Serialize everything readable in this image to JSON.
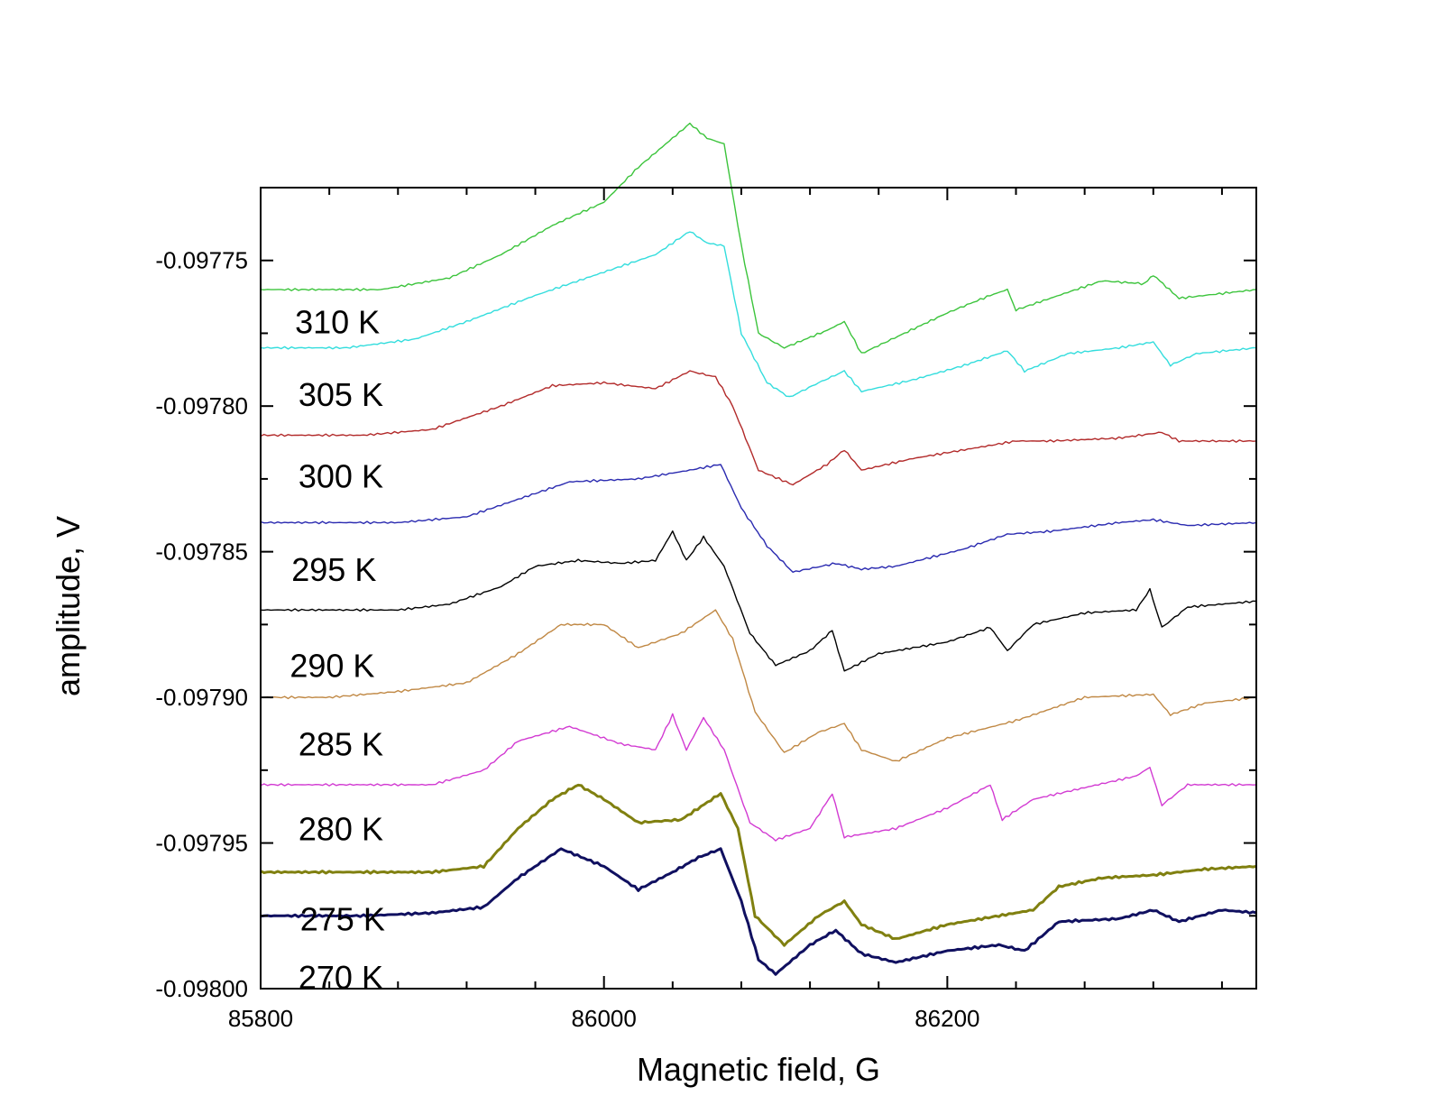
{
  "chart_data": {
    "type": "line",
    "xlabel": "Magnetic field, G",
    "ylabel": "amplitude, V",
    "xlim": [
      85800,
      86380
    ],
    "ylim": [
      -0.098,
      -0.097725
    ],
    "x_ticks": [
      "85800",
      "86000",
      "86200"
    ],
    "y_ticks": [
      "-0.09775",
      "-0.09780",
      "-0.09785",
      "-0.09790",
      "-0.09795",
      "-0.09800"
    ],
    "grid": false,
    "series": [
      {
        "name": "310 K",
        "color": "#3cc43c",
        "width": 1.4,
        "label_at": [
          85820,
          -0.097775
        ],
        "points": [
          [
            85800,
            -0.09776
          ],
          [
            85830,
            -0.09776
          ],
          [
            85870,
            -0.09776
          ],
          [
            85910,
            -0.097756
          ],
          [
            85940,
            -0.097748
          ],
          [
            85970,
            -0.097738
          ],
          [
            86000,
            -0.09773
          ],
          [
            86020,
            -0.097718
          ],
          [
            86040,
            -0.097708
          ],
          [
            86050,
            -0.097703
          ],
          [
            86060,
            -0.097708
          ],
          [
            86070,
            -0.09771
          ],
          [
            86080,
            -0.097745
          ],
          [
            86090,
            -0.097775
          ],
          [
            86105,
            -0.09778
          ],
          [
            86130,
            -0.097774
          ],
          [
            86140,
            -0.097771
          ],
          [
            86150,
            -0.097782
          ],
          [
            86175,
            -0.097775
          ],
          [
            86200,
            -0.097768
          ],
          [
            86225,
            -0.097762
          ],
          [
            86235,
            -0.09776
          ],
          [
            86240,
            -0.097767
          ],
          [
            86260,
            -0.097763
          ],
          [
            86290,
            -0.097757
          ],
          [
            86315,
            -0.097758
          ],
          [
            86320,
            -0.097755
          ],
          [
            86335,
            -0.097763
          ],
          [
            86380,
            -0.09776
          ]
        ]
      },
      {
        "name": "305 K",
        "color": "#33dddd",
        "width": 1.4,
        "label_at": [
          85822,
          -0.0978
        ],
        "points": [
          [
            85800,
            -0.09778
          ],
          [
            85850,
            -0.09778
          ],
          [
            85890,
            -0.097777
          ],
          [
            85920,
            -0.097771
          ],
          [
            85960,
            -0.097762
          ],
          [
            86000,
            -0.097754
          ],
          [
            86030,
            -0.097748
          ],
          [
            86050,
            -0.09774
          ],
          [
            86060,
            -0.097744
          ],
          [
            86070,
            -0.097745
          ],
          [
            86080,
            -0.097775
          ],
          [
            86095,
            -0.097792
          ],
          [
            86108,
            -0.097797
          ],
          [
            86125,
            -0.097792
          ],
          [
            86140,
            -0.097788
          ],
          [
            86150,
            -0.097795
          ],
          [
            86180,
            -0.097791
          ],
          [
            86210,
            -0.097786
          ],
          [
            86235,
            -0.097781
          ],
          [
            86245,
            -0.097788
          ],
          [
            86270,
            -0.097782
          ],
          [
            86300,
            -0.09778
          ],
          [
            86320,
            -0.097778
          ],
          [
            86330,
            -0.097786
          ],
          [
            86345,
            -0.097782
          ],
          [
            86380,
            -0.09778
          ]
        ]
      },
      {
        "name": "300 K",
        "color": "#b22a2a",
        "width": 1.4,
        "label_at": [
          85822,
          -0.097828
        ],
        "points": [
          [
            85800,
            -0.09781
          ],
          [
            85860,
            -0.09781
          ],
          [
            85900,
            -0.097808
          ],
          [
            85940,
            -0.0978
          ],
          [
            85970,
            -0.097793
          ],
          [
            86000,
            -0.097792
          ],
          [
            86030,
            -0.097794
          ],
          [
            86050,
            -0.097788
          ],
          [
            86065,
            -0.09779
          ],
          [
            86075,
            -0.0978
          ],
          [
            86090,
            -0.097822
          ],
          [
            86110,
            -0.097827
          ],
          [
            86130,
            -0.09782
          ],
          [
            86140,
            -0.097815
          ],
          [
            86150,
            -0.097822
          ],
          [
            86180,
            -0.097818
          ],
          [
            86210,
            -0.097815
          ],
          [
            86240,
            -0.097812
          ],
          [
            86260,
            -0.097812
          ],
          [
            86300,
            -0.097811
          ],
          [
            86325,
            -0.097809
          ],
          [
            86335,
            -0.097812
          ],
          [
            86380,
            -0.097812
          ]
        ]
      },
      {
        "name": "295 K",
        "color": "#2a2ab0",
        "width": 1.4,
        "label_at": [
          85818,
          -0.09786
        ],
        "points": [
          [
            85800,
            -0.09784
          ],
          [
            85880,
            -0.09784
          ],
          [
            85920,
            -0.097838
          ],
          [
            85950,
            -0.097832
          ],
          [
            85980,
            -0.097826
          ],
          [
            86020,
            -0.097825
          ],
          [
            86050,
            -0.097822
          ],
          [
            86068,
            -0.09782
          ],
          [
            86080,
            -0.097835
          ],
          [
            86095,
            -0.097848
          ],
          [
            86110,
            -0.097857
          ],
          [
            86135,
            -0.097854
          ],
          [
            86150,
            -0.097856
          ],
          [
            86170,
            -0.097855
          ],
          [
            86210,
            -0.097849
          ],
          [
            86235,
            -0.097844
          ],
          [
            86260,
            -0.097843
          ],
          [
            86300,
            -0.09784
          ],
          [
            86320,
            -0.097839
          ],
          [
            86340,
            -0.097841
          ],
          [
            86380,
            -0.09784
          ]
        ]
      },
      {
        "name": "290 K",
        "color": "#000000",
        "width": 1.4,
        "label_at": [
          85817,
          -0.097893
        ],
        "points": [
          [
            85800,
            -0.09787
          ],
          [
            85880,
            -0.09787
          ],
          [
            85910,
            -0.097868
          ],
          [
            85940,
            -0.097862
          ],
          [
            85960,
            -0.097855
          ],
          [
            85985,
            -0.097853
          ],
          [
            86010,
            -0.097854
          ],
          [
            86030,
            -0.097853
          ],
          [
            86040,
            -0.097843
          ],
          [
            86048,
            -0.097853
          ],
          [
            86058,
            -0.097845
          ],
          [
            86070,
            -0.097855
          ],
          [
            86085,
            -0.097878
          ],
          [
            86100,
            -0.097889
          ],
          [
            86120,
            -0.097884
          ],
          [
            86133,
            -0.097877
          ],
          [
            86140,
            -0.097891
          ],
          [
            86160,
            -0.097885
          ],
          [
            86200,
            -0.097881
          ],
          [
            86225,
            -0.097876
          ],
          [
            86235,
            -0.097884
          ],
          [
            86250,
            -0.097875
          ],
          [
            86280,
            -0.097871
          ],
          [
            86310,
            -0.09787
          ],
          [
            86318,
            -0.097863
          ],
          [
            86325,
            -0.097876
          ],
          [
            86340,
            -0.097869
          ],
          [
            86380,
            -0.097867
          ]
        ]
      },
      {
        "name": "285 K",
        "color": "#c08844",
        "width": 1.4,
        "label_at": [
          85822,
          -0.09792
        ],
        "points": [
          [
            85800,
            -0.0979
          ],
          [
            85840,
            -0.0979
          ],
          [
            85880,
            -0.097898
          ],
          [
            85920,
            -0.097895
          ],
          [
            85950,
            -0.097885
          ],
          [
            85975,
            -0.097875
          ],
          [
            86000,
            -0.097875
          ],
          [
            86020,
            -0.097883
          ],
          [
            86045,
            -0.097878
          ],
          [
            86065,
            -0.09787
          ],
          [
            86075,
            -0.09788
          ],
          [
            86088,
            -0.097905
          ],
          [
            86105,
            -0.097919
          ],
          [
            86125,
            -0.097912
          ],
          [
            86140,
            -0.097909
          ],
          [
            86150,
            -0.097918
          ],
          [
            86170,
            -0.097922
          ],
          [
            86200,
            -0.097914
          ],
          [
            86240,
            -0.097908
          ],
          [
            86280,
            -0.0979
          ],
          [
            86320,
            -0.097899
          ],
          [
            86330,
            -0.097906
          ],
          [
            86350,
            -0.097902
          ],
          [
            86380,
            -0.0979
          ]
        ]
      },
      {
        "name": "280 K",
        "color": "#d23ad2",
        "width": 1.4,
        "label_at": [
          85822,
          -0.097949
        ],
        "points": [
          [
            85800,
            -0.09793
          ],
          [
            85860,
            -0.09793
          ],
          [
            85900,
            -0.09793
          ],
          [
            85930,
            -0.097925
          ],
          [
            85950,
            -0.097915
          ],
          [
            85980,
            -0.09791
          ],
          [
            86010,
            -0.097916
          ],
          [
            86030,
            -0.097918
          ],
          [
            86040,
            -0.097906
          ],
          [
            86048,
            -0.097918
          ],
          [
            86058,
            -0.097907
          ],
          [
            86070,
            -0.097918
          ],
          [
            86085,
            -0.097943
          ],
          [
            86100,
            -0.097949
          ],
          [
            86120,
            -0.097945
          ],
          [
            86133,
            -0.097933
          ],
          [
            86140,
            -0.097948
          ],
          [
            86170,
            -0.097945
          ],
          [
            86200,
            -0.097938
          ],
          [
            86225,
            -0.09793
          ],
          [
            86232,
            -0.097942
          ],
          [
            86250,
            -0.097935
          ],
          [
            86280,
            -0.097931
          ],
          [
            86310,
            -0.097927
          ],
          [
            86318,
            -0.097924
          ],
          [
            86325,
            -0.097937
          ],
          [
            86340,
            -0.09793
          ],
          [
            86380,
            -0.09793
          ]
        ]
      },
      {
        "name": "275 K",
        "color": "#808010",
        "width": 3,
        "label_at": [
          85823,
          -0.09798
        ],
        "points": [
          [
            85800,
            -0.09796
          ],
          [
            85860,
            -0.09796
          ],
          [
            85900,
            -0.09796
          ],
          [
            85930,
            -0.097958
          ],
          [
            85950,
            -0.097945
          ],
          [
            85970,
            -0.097935
          ],
          [
            85985,
            -0.09793
          ],
          [
            86000,
            -0.097935
          ],
          [
            86020,
            -0.097943
          ],
          [
            86045,
            -0.097942
          ],
          [
            86068,
            -0.097933
          ],
          [
            86078,
            -0.097945
          ],
          [
            86088,
            -0.097975
          ],
          [
            86105,
            -0.097985
          ],
          [
            86125,
            -0.097975
          ],
          [
            86140,
            -0.09797
          ],
          [
            86150,
            -0.097978
          ],
          [
            86170,
            -0.097983
          ],
          [
            86200,
            -0.097978
          ],
          [
            86230,
            -0.097975
          ],
          [
            86250,
            -0.097973
          ],
          [
            86265,
            -0.097965
          ],
          [
            86290,
            -0.097962
          ],
          [
            86320,
            -0.097961
          ],
          [
            86350,
            -0.097959
          ],
          [
            86380,
            -0.097958
          ]
        ]
      },
      {
        "name": "270 K",
        "color": "#101060",
        "width": 3,
        "label_at": [
          85822,
          -0.098
        ],
        "points": [
          [
            85800,
            -0.097975
          ],
          [
            85860,
            -0.097975
          ],
          [
            85900,
            -0.097974
          ],
          [
            85930,
            -0.097972
          ],
          [
            85950,
            -0.097962
          ],
          [
            85975,
            -0.097952
          ],
          [
            86000,
            -0.097958
          ],
          [
            86020,
            -0.097966
          ],
          [
            86040,
            -0.09796
          ],
          [
            86055,
            -0.097955
          ],
          [
            86068,
            -0.097952
          ],
          [
            86080,
            -0.09797
          ],
          [
            86090,
            -0.09799
          ],
          [
            86100,
            -0.097995
          ],
          [
            86120,
            -0.097985
          ],
          [
            86135,
            -0.09798
          ],
          [
            86150,
            -0.097988
          ],
          [
            86170,
            -0.097991
          ],
          [
            86200,
            -0.097987
          ],
          [
            86230,
            -0.097985
          ],
          [
            86245,
            -0.097987
          ],
          [
            86265,
            -0.097977
          ],
          [
            86300,
            -0.097976
          ],
          [
            86320,
            -0.097973
          ],
          [
            86335,
            -0.097977
          ],
          [
            86360,
            -0.097973
          ],
          [
            86380,
            -0.097974
          ]
        ]
      }
    ]
  }
}
